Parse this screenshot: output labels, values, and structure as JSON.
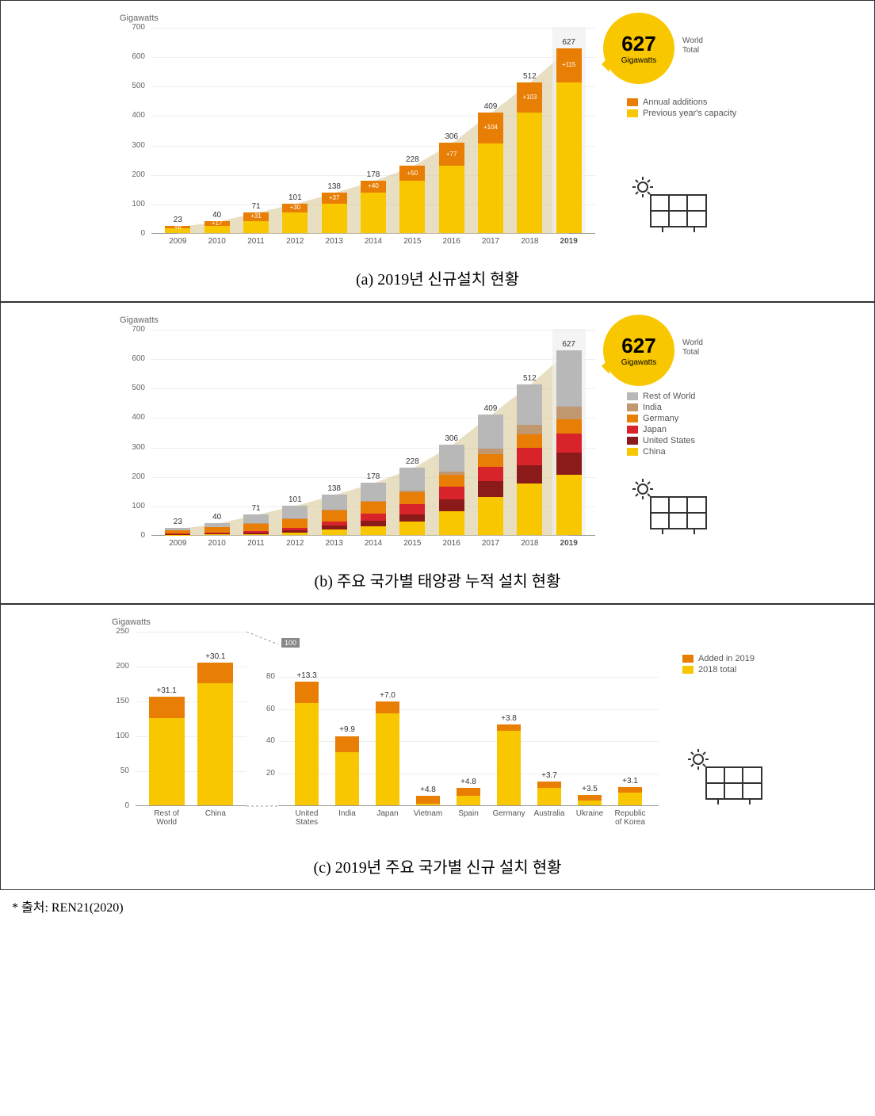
{
  "colors": {
    "yellow": "#f9c700",
    "orange": "#e87e04",
    "bg_highlight": "#f0f0f0",
    "diag_fill": "#d9c89a",
    "grey": "#b8b8b8",
    "tan": "#c19770",
    "orange2": "#e87e04",
    "red": "#d8232a",
    "darkred": "#8b1a1a",
    "bubble": "#f9c700",
    "grid": "#eeeeee",
    "text": "#555555"
  },
  "chart_a": {
    "axis_title": "Gigawatts",
    "ylim": [
      0,
      700
    ],
    "ytick_step": 100,
    "years": [
      "2009",
      "2010",
      "2011",
      "2012",
      "2013",
      "2014",
      "2015",
      "2016",
      "2017",
      "2018",
      "2019"
    ],
    "totals": [
      23,
      40,
      71,
      101,
      138,
      178,
      228,
      306,
      409,
      512,
      627
    ],
    "additions": [
      8,
      17,
      31,
      30,
      37,
      40,
      50,
      77,
      104,
      103,
      115
    ],
    "legend": [
      {
        "label": "Annual additions",
        "color": "#e87e04"
      },
      {
        "label": "Previous year's capacity",
        "color": "#f9c700"
      }
    ],
    "bubble": {
      "value": "627",
      "unit": "Gigawatts",
      "label": "World\nTotal"
    },
    "caption": "(a) 2019년 신규설치 현황"
  },
  "chart_b": {
    "axis_title": "Gigawatts",
    "ylim": [
      0,
      700
    ],
    "ytick_step": 100,
    "years": [
      "2009",
      "2010",
      "2011",
      "2012",
      "2013",
      "2014",
      "2015",
      "2016",
      "2017",
      "2018",
      "2019"
    ],
    "totals": [
      23,
      40,
      71,
      101,
      138,
      178,
      228,
      306,
      409,
      512,
      627
    ],
    "series": [
      {
        "name": "China",
        "color": "#f9c700",
        "vals": [
          1,
          2,
          4,
          8,
          20,
          30,
          45,
          80,
          130,
          175,
          205
        ]
      },
      {
        "name": "United States",
        "color": "#8b1a1a",
        "vals": [
          2,
          3,
          5,
          8,
          13,
          19,
          26,
          41,
          52,
          63,
          76
        ]
      },
      {
        "name": "Japan",
        "color": "#d8232a",
        "vals": [
          3,
          4,
          5,
          7,
          14,
          24,
          35,
          43,
          50,
          57,
          63
        ]
      },
      {
        "name": "Germany",
        "color": "#e87e04",
        "vals": [
          10,
          18,
          26,
          33,
          36,
          39,
          40,
          42,
          43,
          46,
          50
        ]
      },
      {
        "name": "India",
        "color": "#c19770",
        "vals": [
          0,
          0,
          1,
          1,
          2,
          3,
          6,
          10,
          19,
          33,
          43
        ]
      },
      {
        "name": "Rest of World",
        "color": "#b8b8b8",
        "vals": [
          7,
          13,
          30,
          44,
          53,
          63,
          76,
          90,
          115,
          138,
          190
        ]
      }
    ],
    "legend": [
      {
        "label": "Rest of World",
        "color": "#b8b8b8"
      },
      {
        "label": "India",
        "color": "#c19770"
      },
      {
        "label": "Germany",
        "color": "#e87e04"
      },
      {
        "label": "Japan",
        "color": "#d8232a"
      },
      {
        "label": "United States",
        "color": "#8b1a1a"
      },
      {
        "label": "China",
        "color": "#f9c700"
      }
    ],
    "bubble": {
      "value": "627",
      "unit": "Gigawatts",
      "label": "World\nTotal"
    },
    "caption": "(b) 주요 국가별 태양광 누적 설치 현황"
  },
  "chart_c": {
    "axis_title": "Gigawatts",
    "left": {
      "ylim": [
        0,
        250
      ],
      "ytick_step": 50,
      "countries": [
        "Rest of World",
        "China"
      ],
      "base": [
        125,
        175
      ],
      "add": [
        31.1,
        30.1
      ],
      "add_labels": [
        "+31.1",
        "+30.1"
      ]
    },
    "right": {
      "ylim": [
        0,
        100
      ],
      "ytick_step": 20,
      "ytick_label_top": "100",
      "countries": [
        "United States",
        "India",
        "Japan",
        "Vietnam",
        "Spain",
        "Germany",
        "Australia",
        "Ukraine",
        "Republic of Korea"
      ],
      "base": [
        63,
        33,
        57,
        1,
        6,
        46,
        11,
        3,
        8
      ],
      "add": [
        13.3,
        9.9,
        7.0,
        4.8,
        4.8,
        3.8,
        3.7,
        3.5,
        3.1
      ],
      "add_labels": [
        "+13.3",
        "+9.9",
        "+7.0",
        "+4.8",
        "+4.8",
        "+3.8",
        "+3.7",
        "+3.5",
        "+3.1"
      ]
    },
    "legend": [
      {
        "label": "Added in 2019",
        "color": "#e87e04"
      },
      {
        "label": "2018 total",
        "color": "#f9c700"
      }
    ],
    "caption": "(c) 2019년 주요 국가별 신규 설치 현황"
  },
  "source": "* 출처: REN21(2020)"
}
